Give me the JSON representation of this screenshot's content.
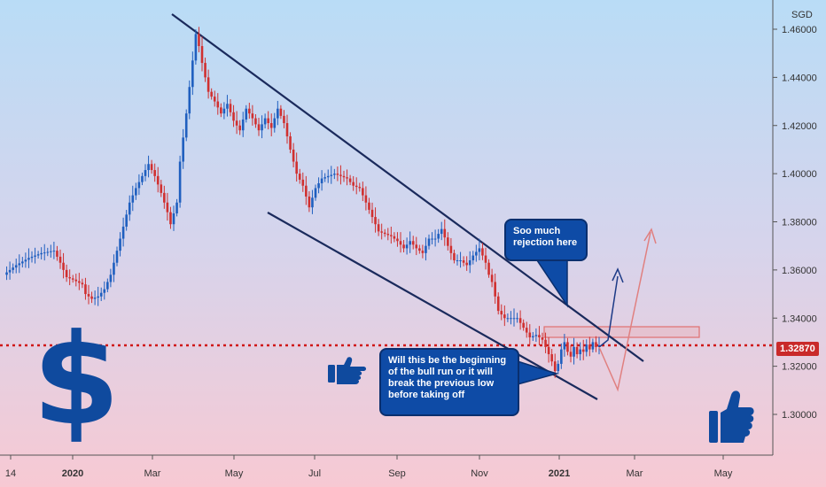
{
  "chart_data": {
    "type": "candlestick",
    "y_unit_label": "SGD",
    "ylim": [
      1.286,
      1.466
    ],
    "y_ticks": [
      "1.46000",
      "1.44000",
      "1.42000",
      "1.40000",
      "1.38000",
      "1.36000",
      "1.34000",
      "1.32000",
      "1.30000"
    ],
    "y_tick_values": [
      1.46,
      1.44,
      1.42,
      1.4,
      1.38,
      1.36,
      1.34,
      1.32,
      1.3
    ],
    "x_ticks": [
      "14",
      "2020",
      "Mar",
      "May",
      "Jul",
      "Sep",
      "Nov",
      "2021",
      "Mar",
      "May"
    ],
    "x_tick_bold": [
      false,
      true,
      false,
      false,
      false,
      false,
      false,
      true,
      false,
      false
    ],
    "current_price": "1.32870",
    "current_price_value": 1.3287,
    "price_path": [
      [
        0,
        1.358
      ],
      [
        4,
        1.362
      ],
      [
        8,
        1.365
      ],
      [
        12,
        1.367
      ],
      [
        16,
        1.368
      ],
      [
        18,
        1.363
      ],
      [
        20,
        1.357
      ],
      [
        22,
        1.356
      ],
      [
        25,
        1.354
      ],
      [
        26,
        1.35
      ],
      [
        28,
        1.348
      ],
      [
        30,
        1.349
      ],
      [
        32,
        1.352
      ],
      [
        34,
        1.358
      ],
      [
        36,
        1.368
      ],
      [
        38,
        1.378
      ],
      [
        40,
        1.388
      ],
      [
        42,
        1.394
      ],
      [
        44,
        1.399
      ],
      [
        46,
        1.404
      ],
      [
        48,
        1.399
      ],
      [
        50,
        1.392
      ],
      [
        52,
        1.384
      ],
      [
        53,
        1.379
      ],
      [
        55,
        1.388
      ],
      [
        56,
        1.405
      ],
      [
        58,
        1.425
      ],
      [
        60,
        1.447
      ],
      [
        61,
        1.458
      ],
      [
        62,
        1.453
      ],
      [
        63,
        1.446
      ],
      [
        65,
        1.434
      ],
      [
        67,
        1.43
      ],
      [
        69,
        1.425
      ],
      [
        71,
        1.429
      ],
      [
        73,
        1.422
      ],
      [
        75,
        1.418
      ],
      [
        77,
        1.427
      ],
      [
        79,
        1.423
      ],
      [
        81,
        1.418
      ],
      [
        83,
        1.423
      ],
      [
        85,
        1.419
      ],
      [
        87,
        1.427
      ],
      [
        89,
        1.421
      ],
      [
        91,
        1.41
      ],
      [
        93,
        1.4
      ],
      [
        95,
        1.395
      ],
      [
        97,
        1.386
      ],
      [
        99,
        1.394
      ],
      [
        101,
        1.398
      ],
      [
        103,
        1.399
      ],
      [
        105,
        1.4
      ],
      [
        107,
        1.399
      ],
      [
        109,
        1.398
      ],
      [
        111,
        1.395
      ],
      [
        113,
        1.394
      ],
      [
        115,
        1.388
      ],
      [
        117,
        1.382
      ],
      [
        119,
        1.376
      ],
      [
        121,
        1.375
      ],
      [
        123,
        1.374
      ],
      [
        125,
        1.372
      ],
      [
        127,
        1.369
      ],
      [
        129,
        1.372
      ],
      [
        131,
        1.369
      ],
      [
        133,
        1.367
      ],
      [
        135,
        1.373
      ],
      [
        137,
        1.373
      ],
      [
        139,
        1.377
      ],
      [
        141,
        1.37
      ],
      [
        143,
        1.364
      ],
      [
        145,
        1.364
      ],
      [
        147,
        1.362
      ],
      [
        149,
        1.366
      ],
      [
        151,
        1.369
      ],
      [
        153,
        1.363
      ],
      [
        154,
        1.358
      ],
      [
        155,
        1.355
      ],
      [
        157,
        1.343
      ],
      [
        159,
        1.34
      ],
      [
        161,
        1.34
      ],
      [
        163,
        1.34
      ],
      [
        165,
        1.336
      ],
      [
        167,
        1.332
      ],
      [
        169,
        1.333
      ],
      [
        171,
        1.331
      ],
      [
        173,
        1.325
      ],
      [
        174,
        1.322
      ],
      [
        175,
        1.318
      ],
      [
        176,
        1.321
      ],
      [
        177,
        1.327
      ],
      [
        178,
        1.33
      ],
      [
        179,
        1.326
      ],
      [
        180,
        1.324
      ],
      [
        181,
        1.328
      ],
      [
        182,
        1.325
      ],
      [
        183,
        1.327
      ],
      [
        184,
        1.326
      ],
      [
        185,
        1.329
      ],
      [
        186,
        1.327
      ],
      [
        187,
        1.33
      ],
      [
        188,
        1.328
      ],
      [
        189,
        1.3287
      ]
    ],
    "annotations": [
      {
        "text": "Soo much rejection here"
      },
      {
        "text": "Will this be the beginning of the bull run or it will break the previous low before taking off"
      }
    ]
  },
  "labels": {
    "unit": "SGD",
    "price_tag": "1.32870",
    "callout_top": "Soo much\nrejection here",
    "callout_bottom": "Will this be the beginning of the bull run or it will break the previous low before taking off"
  },
  "icons": [
    "dollar-sign-icon",
    "thumbs-up-pointing-icon",
    "thumbs-up-icon"
  ],
  "colors": {
    "up": "#1f5fbf",
    "down": "#d03030",
    "trendline": "#1a2a5c",
    "price_line": "#d01818",
    "callout": "#0e4ba6",
    "accent": "#0f4a9e"
  }
}
